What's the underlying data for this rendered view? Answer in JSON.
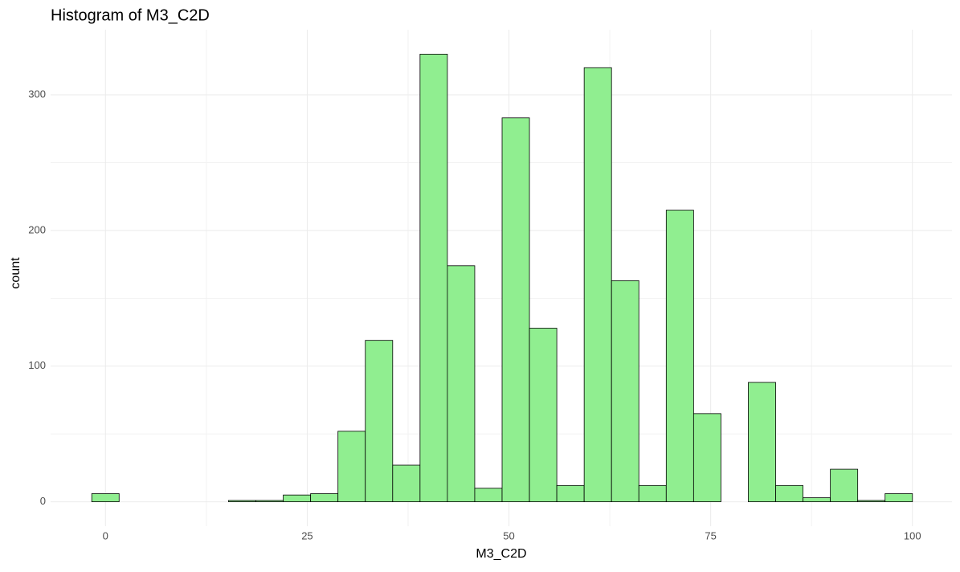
{
  "chart_data": {
    "type": "histogram",
    "title": "Histogram of M3_C2D",
    "x_label": "M3_C2D",
    "y_label": "count",
    "bins": [
      -1.7,
      1.69,
      5.08,
      8.47,
      11.86,
      15.25,
      18.64,
      22.03,
      25.42,
      28.81,
      32.2,
      35.59,
      38.98,
      42.37,
      45.76,
      49.15,
      52.54,
      55.93,
      59.32,
      62.71,
      66.1,
      69.49,
      72.88,
      76.27,
      79.66,
      83.05,
      86.44,
      89.83,
      93.22,
      96.61,
      100.0
    ],
    "counts": [
      6,
      0,
      0,
      0,
      0,
      1,
      1,
      5,
      6,
      52,
      119,
      27,
      330,
      174,
      10,
      283,
      128,
      12,
      320,
      163,
      12,
      215,
      65,
      0,
      88,
      12,
      3,
      24,
      1,
      6
    ],
    "color": "#90ee90",
    "edge_color": "#000000",
    "xlim": [
      -6.8,
      104.9
    ],
    "xticks": [
      0,
      25,
      50,
      75,
      100
    ],
    "ylim": [
      -18,
      348
    ],
    "yticks": [
      0,
      100,
      200,
      300
    ],
    "grid": true
  }
}
